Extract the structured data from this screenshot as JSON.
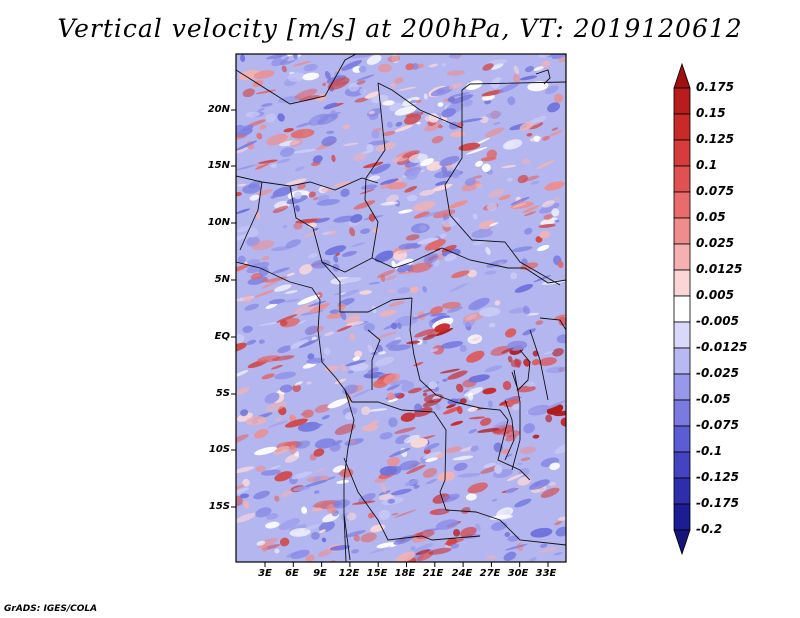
{
  "title": "Vertical velocity [m/s] at 200hPa, VT: 2019120612",
  "footer": "GrADS: IGES/COLA",
  "map": {
    "lat_labels": [
      "20N",
      "15N",
      "10N",
      "5N",
      "EQ",
      "5S",
      "10S",
      "15S"
    ],
    "lon_labels": [
      "3E",
      "6E",
      "9E",
      "12E",
      "15E",
      "18E",
      "21E",
      "24E",
      "27E",
      "30E",
      "33E"
    ]
  },
  "colorbar": {
    "labels": [
      "0.175",
      "0.15",
      "0.125",
      "0.1",
      "0.075",
      "0.05",
      "0.025",
      "0.0125",
      "0.005",
      "-0.005",
      "-0.0125",
      "-0.025",
      "-0.05",
      "-0.075",
      "-0.1",
      "-0.125",
      "-0.175",
      "-0.2"
    ],
    "colors": [
      "#a01010",
      "#b81c1c",
      "#c82a2a",
      "#d63c3c",
      "#e05252",
      "#e86c6c",
      "#ef8c8c",
      "#f5b0b0",
      "#fad6d6",
      "#ffffff",
      "#d8d8fa",
      "#b8b8f2",
      "#9898ea",
      "#7a7ae0",
      "#5c5cd4",
      "#4444c2",
      "#2e2eac",
      "#1c1c94",
      "#14147a"
    ]
  }
}
